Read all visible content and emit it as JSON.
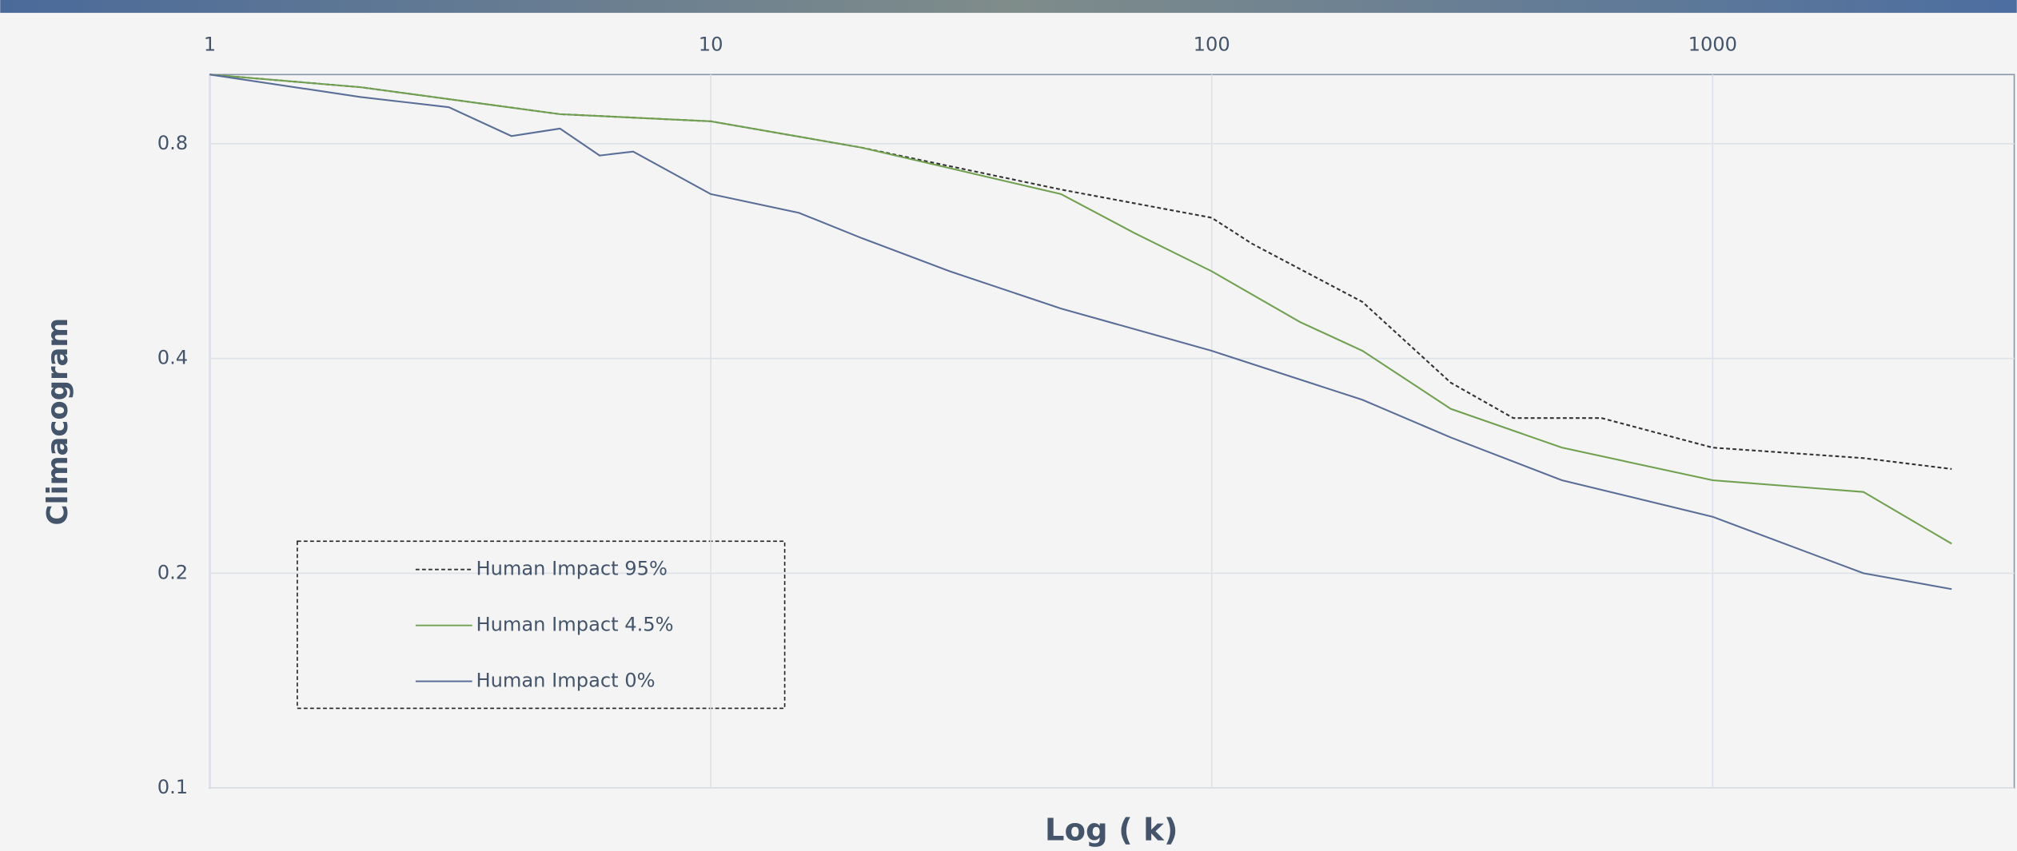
{
  "chart_data": {
    "type": "line",
    "x_label": "Log ( k)",
    "y_label": "Climacogram",
    "xscale": "log",
    "yscale": "log",
    "xlim": [
      1,
      4000
    ],
    "ylim": [
      0.1,
      1
    ],
    "xticks": [
      1,
      10,
      100,
      1000
    ],
    "yticks": [
      0.1,
      0.2,
      0.4,
      0.8
    ],
    "grid": true,
    "legend": "lower left",
    "series": [
      {
        "name": "Human Impact 95%",
        "color": "#333333",
        "line_style": "dashed",
        "x": [
          1,
          2,
          5,
          10,
          20,
          50,
          100,
          120,
          200,
          300,
          400,
          600,
          1000,
          2000,
          3000
        ],
        "values": [
          1.0,
          0.96,
          0.88,
          0.86,
          0.79,
          0.69,
          0.63,
          0.58,
          0.48,
          0.37,
          0.33,
          0.33,
          0.3,
          0.29,
          0.28
        ]
      },
      {
        "name": "Human Impact 4.5%",
        "color": "#70a050",
        "line_style": "solid",
        "x": [
          1,
          2,
          5,
          10,
          20,
          50,
          70,
          100,
          150,
          200,
          300,
          500,
          1000,
          2000,
          3000
        ],
        "values": [
          1.0,
          0.96,
          0.88,
          0.86,
          0.79,
          0.68,
          0.6,
          0.53,
          0.45,
          0.41,
          0.34,
          0.3,
          0.27,
          0.26,
          0.22
        ]
      },
      {
        "name": "Human Impact 0%",
        "color": "#5a6e98",
        "line_style": "solid",
        "x": [
          1,
          2,
          3,
          4,
          5,
          6,
          7,
          10,
          15,
          20,
          30,
          50,
          100,
          200,
          300,
          500,
          1000,
          2000,
          3000
        ],
        "values": [
          1.0,
          0.93,
          0.9,
          0.82,
          0.84,
          0.77,
          0.78,
          0.68,
          0.64,
          0.59,
          0.53,
          0.47,
          0.41,
          0.35,
          0.31,
          0.27,
          0.24,
          0.2,
          0.19
        ]
      }
    ]
  }
}
